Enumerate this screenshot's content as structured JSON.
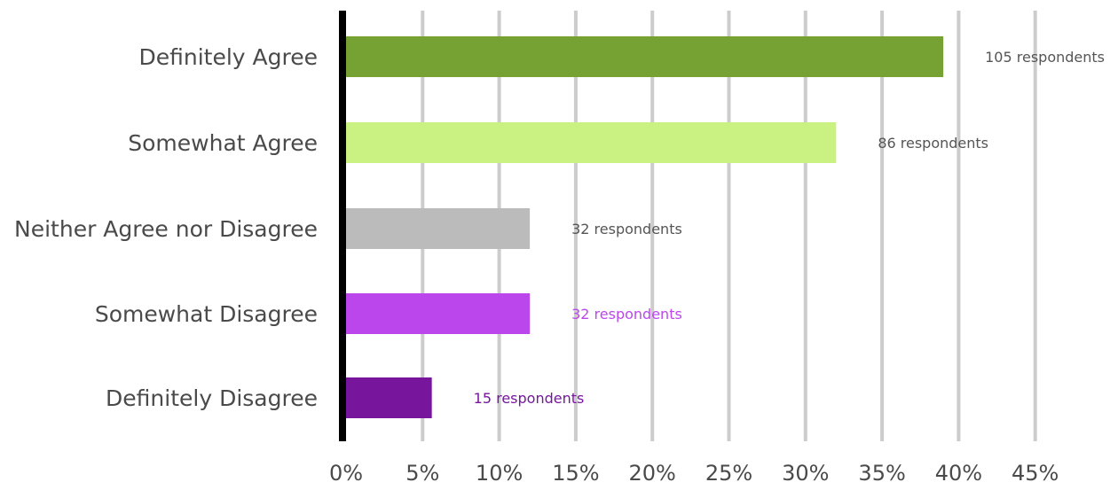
{
  "chart_data": {
    "type": "bar",
    "orientation": "horizontal",
    "categories": [
      "Definitely Agree",
      "Somewhat Agree",
      "Neither Agree nor Disagree",
      "Somewhat Disagree",
      "Definitely Disagree"
    ],
    "values": [
      39.0,
      32.0,
      12.0,
      12.0,
      5.6
    ],
    "data_labels": [
      "105 respondents",
      "86 respondents",
      "32 respondents",
      "32 respondents",
      "15 respondents"
    ],
    "colors": [
      "#76a233",
      "#c9f282",
      "#bbbbbb",
      "#bb47ec",
      "#77159d"
    ],
    "label_colors": [
      "#555555",
      "#555555",
      "#555555",
      "#bb47ec",
      "#77159d"
    ],
    "x_ticks": [
      "0%",
      "5%",
      "10%",
      "15%",
      "20%",
      "25%",
      "30%",
      "35%",
      "40%",
      "45%"
    ],
    "xlim": [
      0,
      45
    ],
    "title": "",
    "xlabel": "",
    "ylabel": "",
    "grid": "vertical",
    "legend": "none"
  }
}
